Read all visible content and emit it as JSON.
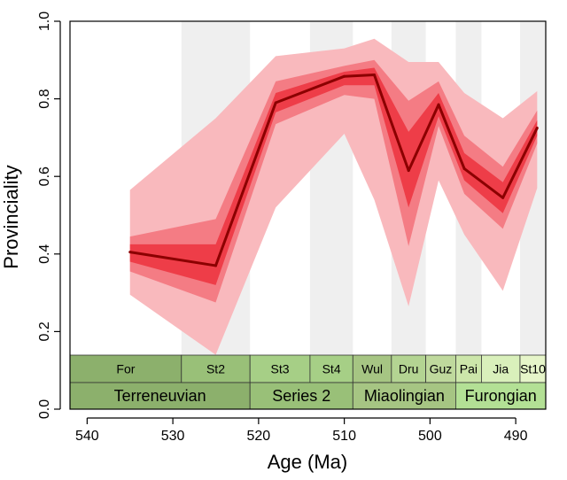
{
  "chart_data": {
    "type": "line",
    "xlabel": "Age (Ma)",
    "ylabel": "Provinciality",
    "xlim": [
      542,
      486.5
    ],
    "ylim": [
      0.0,
      1.0
    ],
    "x_ticks": [
      540,
      530,
      520,
      510,
      500,
      490
    ],
    "y_ticks": [
      0.0,
      0.2,
      0.4,
      0.6,
      0.8,
      1.0
    ],
    "series": [
      {
        "name": "median",
        "color": "#8b0000",
        "x": [
          535.0,
          525.0,
          518.0,
          510.0,
          506.5,
          502.5,
          499.0,
          496.0,
          491.5,
          487.5
        ],
        "values": [
          0.405,
          0.37,
          0.79,
          0.858,
          0.862,
          0.615,
          0.785,
          0.62,
          0.545,
          0.725
        ]
      }
    ],
    "bands": [
      {
        "name": "outer band",
        "color": "#f9b9bd",
        "lower": [
          0.295,
          0.14,
          0.52,
          0.71,
          0.54,
          0.265,
          0.59,
          0.45,
          0.305,
          0.57
        ],
        "upper": [
          0.565,
          0.75,
          0.91,
          0.93,
          0.955,
          0.895,
          0.895,
          0.815,
          0.75,
          0.82
        ]
      },
      {
        "name": "middle band",
        "color": "#f47c84",
        "lower": [
          0.355,
          0.275,
          0.735,
          0.81,
          0.8,
          0.42,
          0.73,
          0.555,
          0.465,
          0.685
        ],
        "upper": [
          0.445,
          0.49,
          0.845,
          0.885,
          0.9,
          0.795,
          0.845,
          0.705,
          0.625,
          0.77
        ]
      },
      {
        "name": "inner band",
        "color": "#ee3d48",
        "lower": [
          0.38,
          0.32,
          0.765,
          0.835,
          0.835,
          0.52,
          0.755,
          0.59,
          0.505,
          0.705
        ],
        "upper": [
          0.425,
          0.425,
          0.815,
          0.87,
          0.88,
          0.715,
          0.815,
          0.66,
          0.585,
          0.745
        ]
      }
    ],
    "shaded_intervals": [
      [
        529,
        521
      ],
      [
        514,
        509
      ],
      [
        504.5,
        500.5
      ],
      [
        497,
        494
      ],
      [
        489.5,
        486.5
      ]
    ],
    "stages": [
      {
        "label": "For",
        "start": 542,
        "end": 529
      },
      {
        "label": "St2",
        "start": 529,
        "end": 521
      },
      {
        "label": "St3",
        "start": 521,
        "end": 514
      },
      {
        "label": "St4",
        "start": 514,
        "end": 509
      },
      {
        "label": "Wul",
        "start": 509,
        "end": 504.5
      },
      {
        "label": "Dru",
        "start": 504.5,
        "end": 500.5
      },
      {
        "label": "Guz",
        "start": 500.5,
        "end": 497
      },
      {
        "label": "Pai",
        "start": 497,
        "end": 494
      },
      {
        "label": "Jia",
        "start": 494,
        "end": 489.5
      },
      {
        "label": "St10",
        "start": 489.5,
        "end": 486.5
      }
    ],
    "series_epochs": [
      {
        "label": "Terreneuvian",
        "start": 542,
        "end": 521
      },
      {
        "label": "Series 2",
        "start": 521,
        "end": 509
      },
      {
        "label": "Miaolingian",
        "start": 509,
        "end": 497
      },
      {
        "label": "Furongian",
        "start": 497,
        "end": 486.5
      }
    ],
    "stage_colors": [
      "#8cb06c",
      "#99c078",
      "#a6cf86",
      "#a6cf86",
      "#a6c583",
      "#b3d492",
      "#bfd99d",
      "#cce6aa",
      "#d9f0bb",
      "#e6f5c9"
    ],
    "epoch_colors": [
      "#8cb06c",
      "#99c078",
      "#a6c583",
      "#b3e095"
    ]
  }
}
